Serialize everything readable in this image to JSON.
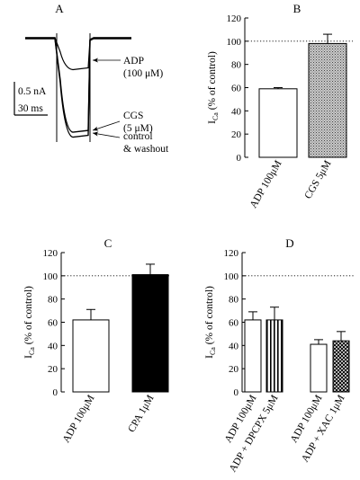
{
  "chart_data": [
    {
      "panel": "A",
      "type": "line",
      "scale_current": "0.5 nA",
      "scale_time": "30 ms",
      "traces": [
        {
          "name": "ADP",
          "label_lines": [
            "ADP",
            "(100 μM)"
          ],
          "plateau_nA": -0.24
        },
        {
          "name": "CGS",
          "label_lines": [
            "CGS",
            "(5 μM)"
          ],
          "plateau_nA": -0.71
        },
        {
          "name": "control & washout",
          "label_lines": [
            "control",
            "& washout"
          ],
          "plateau_nA": -0.74
        }
      ]
    },
    {
      "panel": "B",
      "type": "bar",
      "ylabel": "I_Ca (% of control)",
      "ylabel_main": "I",
      "ylabel_sub": "Ca",
      "ylabel_rest": " (% of control)",
      "ylim": [
        0,
        120
      ],
      "yticks": [
        "0",
        "20",
        "40",
        "60",
        "80",
        "100",
        "120"
      ],
      "reference_line": 100,
      "categories": [
        "ADP 100μM",
        "CGS 5μM"
      ],
      "values": [
        59,
        98
      ],
      "errors": [
        1,
        8
      ],
      "fills": [
        "white",
        "stipple"
      ]
    },
    {
      "panel": "C",
      "type": "bar",
      "ylabel": "I_Ca (% of control)",
      "ylabel_main": "I",
      "ylabel_sub": "Ca",
      "ylabel_rest": " (% of control)",
      "ylim": [
        0,
        120
      ],
      "yticks": [
        "0",
        "20",
        "40",
        "60",
        "80",
        "100",
        "120"
      ],
      "reference_line": 100,
      "categories": [
        "ADP 100μM",
        "CPA 1μM"
      ],
      "values": [
        62,
        101
      ],
      "errors": [
        9,
        9
      ],
      "fills": [
        "white",
        "black"
      ]
    },
    {
      "panel": "D",
      "type": "bar",
      "ylabel": "I_Ca (% of control)",
      "ylabel_main": "I",
      "ylabel_sub": "Ca",
      "ylabel_rest": " (% of control)",
      "ylim": [
        0,
        120
      ],
      "yticks": [
        "0",
        "20",
        "40",
        "60",
        "80",
        "100",
        "120"
      ],
      "reference_line": 100,
      "categories": [
        "ADP 100μM",
        "ADP + DPCPX 5μM",
        "ADP 100μM",
        "ADP + XAC 1μM"
      ],
      "values": [
        62,
        62,
        41,
        44
      ],
      "errors": [
        7,
        11,
        4,
        8
      ],
      "fills": [
        "white",
        "vstripe",
        "white",
        "crosshatch"
      ]
    }
  ]
}
